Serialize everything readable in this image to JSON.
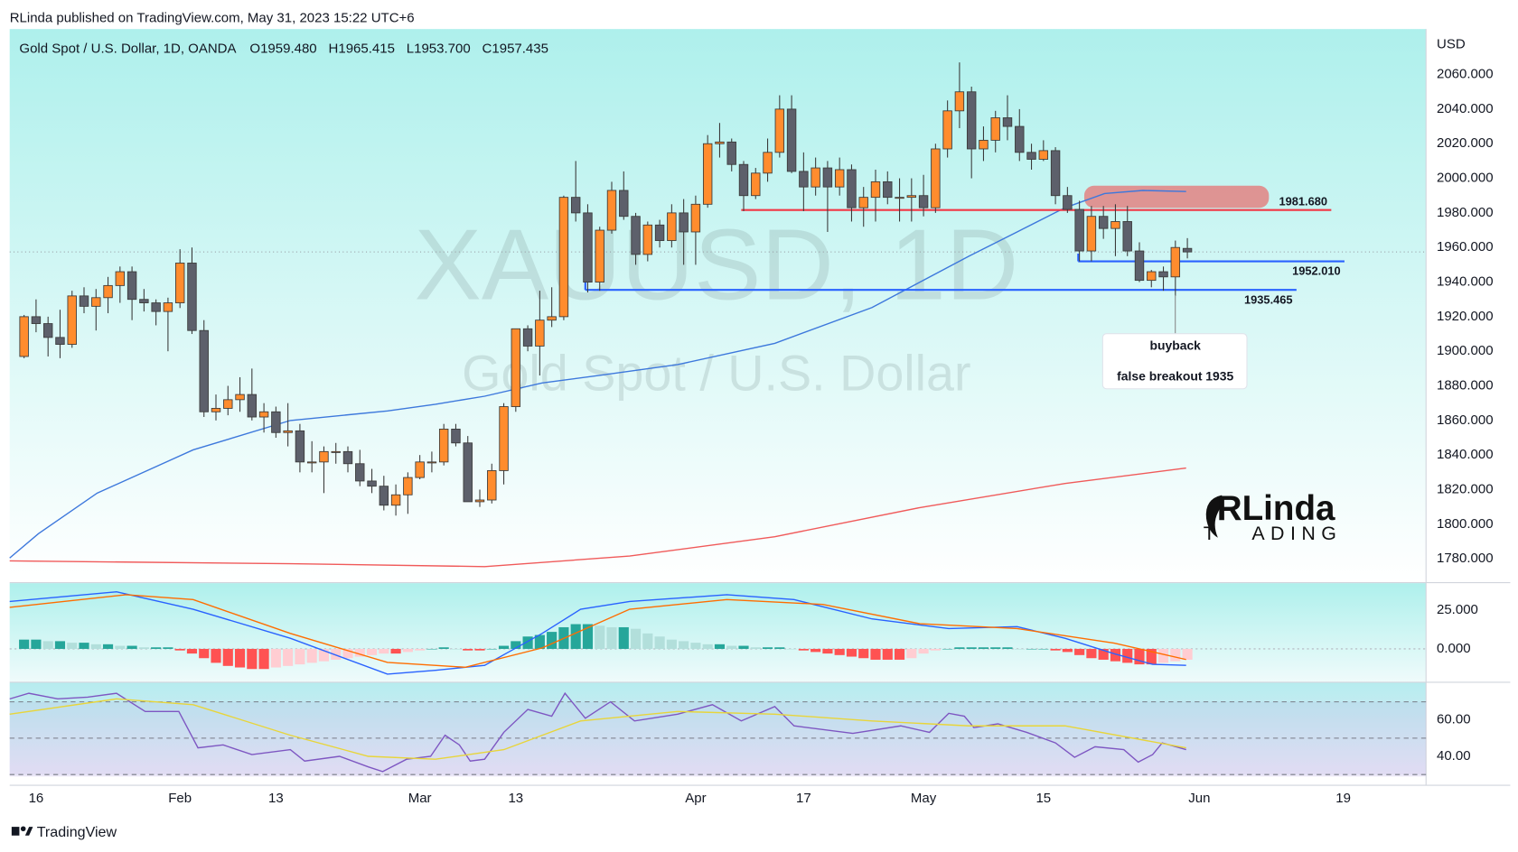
{
  "header": {
    "publisher": "RLinda published on TradingView.com, May 31, 2023 15:22 UTC+6"
  },
  "footer": {
    "brand": "TradingView"
  },
  "chart_data": [
    {
      "type": "candlestick",
      "title": "Gold Spot / U.S. Dollar, 1D, OANDA",
      "ohlc_legend": [
        "O1959.480",
        "H1965.415",
        "L1953.700",
        "C1957.435"
      ],
      "watermark": "XAUUSD, 1D",
      "watermark_sub": "Gold Spot / U.S. Dollar",
      "axis_unit": "USD",
      "logo": "RLinda",
      "logo_sub": [
        "T",
        "ADING"
      ],
      "up_color": "#ff8c2e",
      "down_color": "#5d606b",
      "xlim": [
        -1.2,
        116.9
      ],
      "xticks": [
        {
          "value": 1,
          "label": "16"
        },
        {
          "value": 13,
          "label": "Feb"
        },
        {
          "value": 21,
          "label": "13"
        },
        {
          "value": 33,
          "label": "Mar"
        },
        {
          "value": 41,
          "label": "13"
        },
        {
          "value": 56,
          "label": "Apr"
        },
        {
          "value": 65,
          "label": "17"
        },
        {
          "value": 75,
          "label": "May"
        },
        {
          "value": 85,
          "label": "15"
        },
        {
          "value": 98,
          "label": "Jun"
        },
        {
          "value": 110,
          "label": "19"
        }
      ],
      "ylim": [
        1766.5,
        2086.3
      ],
      "yticks": [
        {
          "value": 1780,
          "label": "1780.000"
        },
        {
          "value": 1800,
          "label": "1800.000"
        },
        {
          "value": 1820,
          "label": "1820.000"
        },
        {
          "value": 1840,
          "label": "1840.000"
        },
        {
          "value": 1860,
          "label": "1860.000"
        },
        {
          "value": 1880,
          "label": "1880.000"
        },
        {
          "value": 1900,
          "label": "1900.000"
        },
        {
          "value": 1920,
          "label": "1920.000"
        },
        {
          "value": 1940,
          "label": "1940.000"
        },
        {
          "value": 1960,
          "label": "1960.000"
        },
        {
          "value": 1980,
          "label": "1980.000"
        },
        {
          "value": 2000,
          "label": "2000.000"
        },
        {
          "value": 2020,
          "label": "2020.000"
        },
        {
          "value": 2040,
          "label": "2040.000"
        },
        {
          "value": 2060,
          "label": "2060.000"
        }
      ],
      "grid": false,
      "ohlc": [
        [
          1897,
          1921,
          1896,
          1920
        ],
        [
          1920,
          1930,
          1911,
          1916
        ],
        [
          1916,
          1920,
          1897,
          1908
        ],
        [
          1908,
          1924,
          1896,
          1904
        ],
        [
          1904,
          1935,
          1902,
          1932
        ],
        [
          1932,
          1937,
          1922,
          1926
        ],
        [
          1926,
          1936,
          1912,
          1931
        ],
        [
          1931,
          1943,
          1922,
          1938
        ],
        [
          1938,
          1949,
          1928,
          1946
        ],
        [
          1946,
          1949,
          1918,
          1930
        ],
        [
          1930,
          1936,
          1923,
          1928
        ],
        [
          1928,
          1930,
          1915,
          1923
        ],
        [
          1923,
          1931,
          1900,
          1928
        ],
        [
          1928,
          1959,
          1925,
          1951
        ],
        [
          1951,
          1960,
          1910,
          1912
        ],
        [
          1912,
          1918,
          1862,
          1865
        ],
        [
          1865,
          1875,
          1860,
          1867
        ],
        [
          1867,
          1880,
          1863,
          1872
        ],
        [
          1872,
          1885,
          1865,
          1875
        ],
        [
          1875,
          1890,
          1860,
          1862
        ],
        [
          1862,
          1870,
          1853,
          1865
        ],
        [
          1865,
          1868,
          1850,
          1853
        ],
        [
          1853,
          1870,
          1845,
          1854
        ],
        [
          1854,
          1858,
          1830,
          1836
        ],
        [
          1836,
          1848,
          1830,
          1836
        ],
        [
          1836,
          1845,
          1818,
          1842
        ],
        [
          1842,
          1847,
          1835,
          1842
        ],
        [
          1842,
          1845,
          1830,
          1835
        ],
        [
          1835,
          1843,
          1822,
          1825
        ],
        [
          1825,
          1832,
          1818,
          1822
        ],
        [
          1822,
          1828,
          1808,
          1811
        ],
        [
          1811,
          1823,
          1805,
          1817
        ],
        [
          1817,
          1830,
          1806,
          1827
        ],
        [
          1827,
          1840,
          1826,
          1836
        ],
        [
          1836,
          1842,
          1830,
          1836
        ],
        [
          1836,
          1858,
          1834,
          1855
        ],
        [
          1855,
          1858,
          1845,
          1847
        ],
        [
          1847,
          1851,
          1813,
          1813
        ],
        [
          1813,
          1820,
          1810,
          1814
        ],
        [
          1814,
          1835,
          1812,
          1831
        ],
        [
          1831,
          1870,
          1823,
          1868
        ],
        [
          1868,
          1913,
          1865,
          1913
        ],
        [
          1913,
          1915,
          1900,
          1903
        ],
        [
          1903,
          1935,
          1886,
          1918
        ],
        [
          1918,
          1937,
          1914,
          1920
        ],
        [
          1920,
          1990,
          1918,
          1989
        ],
        [
          1989,
          2010,
          1975,
          1980
        ],
        [
          1980,
          1985,
          1934,
          1940
        ],
        [
          1940,
          1972,
          1935,
          1970
        ],
        [
          1970,
          1998,
          1968,
          1993
        ],
        [
          1993,
          2004,
          1976,
          1978
        ],
        [
          1978,
          1980,
          1950,
          1956
        ],
        [
          1956,
          1975,
          1952,
          1973
        ],
        [
          1973,
          1976,
          1960,
          1964
        ],
        [
          1964,
          1985,
          1960,
          1980
        ],
        [
          1980,
          1988,
          1950,
          1969
        ],
        [
          1969,
          1990,
          1950,
          1985
        ],
        [
          1985,
          2025,
          1983,
          2020
        ],
        [
          2020,
          2032,
          2012,
          2021
        ],
        [
          2021,
          2023,
          2004,
          2008
        ],
        [
          2008,
          2010,
          1981,
          1990
        ],
        [
          1990,
          2006,
          1988,
          2003
        ],
        [
          2003,
          2023,
          1998,
          2015
        ],
        [
          2015,
          2048,
          2012,
          2040
        ],
        [
          2040,
          2048,
          2003,
          2004
        ],
        [
          2004,
          2015,
          1981,
          1995
        ],
        [
          1995,
          2012,
          1990,
          2006
        ],
        [
          2006,
          2010,
          1969,
          1995
        ],
        [
          1995,
          2012,
          1990,
          2005
        ],
        [
          2005,
          2008,
          1975,
          1983
        ],
        [
          1983,
          1995,
          1972,
          1989
        ],
        [
          1989,
          2005,
          1975,
          1998
        ],
        [
          1998,
          2004,
          1985,
          1989
        ],
        [
          1989,
          2000,
          1975,
          1989
        ],
        [
          1989,
          2000,
          1975,
          1990
        ],
        [
          1990,
          2002,
          1978,
          1983
        ],
        [
          1983,
          2020,
          1980,
          2017
        ],
        [
          2017,
          2045,
          2012,
          2039
        ],
        [
          2039,
          2067,
          2029,
          2050
        ],
        [
          2050,
          2053,
          2000,
          2017
        ],
        [
          2017,
          2030,
          2010,
          2022
        ],
        [
          2022,
          2039,
          2015,
          2035
        ],
        [
          2035,
          2048,
          2022,
          2030
        ],
        [
          2030,
          2040,
          2010,
          2015
        ],
        [
          2015,
          2020,
          2005,
          2011
        ],
        [
          2011,
          2022,
          2010,
          2016
        ],
        [
          2016,
          2018,
          1985,
          1990
        ],
        [
          1990,
          1995,
          1980,
          1982
        ],
        [
          1982,
          1987,
          1952,
          1958
        ],
        [
          1958,
          1984,
          1952,
          1978
        ],
        [
          1978,
          1984,
          1965,
          1971
        ],
        [
          1971,
          1985,
          1955,
          1975
        ],
        [
          1975,
          1984,
          1955,
          1958
        ],
        [
          1958,
          1963,
          1940,
          1941
        ],
        [
          1941,
          1947,
          1937,
          1946
        ],
        [
          1946,
          1949,
          1935,
          1943
        ],
        [
          1943,
          1964,
          1932,
          1960
        ],
        [
          1959.48,
          1965.415,
          1953.7,
          1957.435
        ]
      ],
      "series": [
        {
          "name": "MA 50",
          "color": "#3d78dc",
          "x": [
            -1.2,
            1.2,
            6.1,
            14.1,
            22.2,
            30.3,
            34.3,
            38.4,
            43.2,
            48.1,
            54.5,
            62.6,
            70.7,
            78.8,
            82.8,
            86.8,
            90.1,
            93.3,
            96.9
          ],
          "values": [
            1780.5,
            1794.5,
            1818,
            1843,
            1860,
            1865.5,
            1869.4,
            1874,
            1881.7,
            1886.2,
            1892.3,
            1904.6,
            1925.3,
            1955,
            1969,
            1983,
            1991.2,
            1993,
            1992.4
          ]
        },
        {
          "name": "MA 200",
          "color": "#f05a5a",
          "x": [
            -1.2,
            22.2,
            38.4,
            50.5,
            62.6,
            74.7,
            86.8,
            96.9
          ],
          "values": [
            1778.8,
            1777.2,
            1775.5,
            1781.6,
            1792.8,
            1809.6,
            1823.6,
            1832.5
          ]
        }
      ],
      "last_price": 1957.435,
      "levels": [
        {
          "value": 1981.68,
          "label": "1981.680",
          "color": "#f23645",
          "x": [
            59.8,
            109
          ]
        },
        {
          "value": 1952.01,
          "label": "1952.010",
          "color": "#2962ff",
          "x": [
            87.9,
            110.1
          ]
        },
        {
          "value": 1935.465,
          "label": "1935.465",
          "color": "#2962ff",
          "x": [
            46.8,
            106.1
          ]
        }
      ],
      "zone": {
        "x": [
          88.4,
          103.8
        ],
        "y": [
          1982.9,
          1995.7
        ],
        "color": "#e57373"
      },
      "note": [
        "buyback",
        "false breakout 1935"
      ]
    },
    {
      "type": "macd",
      "ylim": [
        -21.25,
        42.5
      ],
      "yticks": [
        {
          "value": 25,
          "label": "25.000"
        },
        {
          "value": 0,
          "label": "0.000"
        }
      ],
      "histogram": [
        6,
        6,
        5,
        5,
        4,
        4,
        3,
        3,
        2,
        2,
        1,
        1,
        1,
        -1,
        -3,
        -6,
        -9,
        -11,
        -12,
        -13,
        -13,
        -12,
        -11,
        -10,
        -9,
        -8,
        -7,
        -6,
        -5,
        -4,
        -3,
        -3,
        -2,
        -1,
        0,
        1,
        0,
        -1,
        -1,
        0,
        2,
        5,
        8,
        9,
        11,
        14,
        16,
        16,
        15,
        14,
        14,
        13,
        10,
        8,
        6,
        5,
        4,
        3,
        3,
        2,
        2,
        1,
        1,
        1,
        0,
        -1,
        -2,
        -3,
        -4,
        -5,
        -6,
        -7,
        -7,
        -7,
        -6,
        -3,
        -1,
        0,
        1,
        1,
        1,
        1,
        1,
        0,
        0,
        0,
        -1,
        -2,
        -4,
        -6,
        -7,
        -8,
        -9,
        -10,
        -10,
        -9,
        -8,
        -7
      ],
      "histogram_colors": [
        "#26a69a",
        "#b2dfdb",
        "#ff5252",
        "#ffcdd2"
      ],
      "series": [
        {
          "name": "MACD",
          "color": "#2962ff",
          "x": [
            -1.2,
            7.7,
            14.1,
            22.2,
            30.3,
            34.3,
            38.4,
            43.2,
            46.4,
            50.5,
            58.6,
            64.2,
            70.7,
            77.1,
            82.8,
            86.8,
            90.9,
            94.1,
            96.9
          ],
          "values": [
            30.6,
            36.9,
            25.6,
            6.9,
            -16.3,
            -13.8,
            -10.6,
            10,
            25.6,
            30.6,
            35,
            31.9,
            19.4,
            13.1,
            14.4,
            6.9,
            -3.1,
            -10,
            -10.6
          ]
        },
        {
          "name": "Signal",
          "color": "#ff6d00",
          "x": [
            -1.2,
            8.5,
            14.1,
            22.2,
            30.3,
            36.8,
            43.2,
            50.5,
            58.6,
            66.6,
            74.7,
            82.8,
            90.9,
            96.9
          ],
          "values": [
            26.9,
            35,
            31.9,
            10,
            -8.75,
            -11.9,
            0.6,
            25.6,
            31.9,
            28.75,
            16.25,
            13.1,
            3.75,
            -6.9
          ]
        }
      ]
    },
    {
      "type": "rsi",
      "ylim": [
        28.9,
        80.5
      ],
      "yticks": [
        {
          "value": 60,
          "label": "60.00"
        },
        {
          "value": 40,
          "label": "40.00"
        }
      ],
      "hlines": [
        70,
        50,
        30
      ],
      "series": [
        {
          "name": "RSI",
          "color": "#7e57c2",
          "x": [
            -1.2,
            0.4,
            2.8,
            5.3,
            7.7,
            10.1,
            12.9,
            14.5,
            16.6,
            19,
            22.2,
            23.4,
            26.3,
            28.7,
            29.9,
            31.9,
            33.9,
            35.1,
            36.3,
            37.2,
            38.4,
            40,
            42,
            44,
            45.1,
            46.8,
            48.9,
            50.9,
            54.5,
            57.4,
            59.8,
            62.6,
            64.2,
            69.1,
            73.1,
            75.5,
            77.1,
            78.4,
            79.2,
            81.2,
            83.6,
            86,
            87.6,
            89.3,
            91.7,
            92.9,
            94.1,
            94.9,
            96.9
          ],
          "values": [
            71.6,
            74.7,
            71.6,
            72.6,
            74.7,
            64.7,
            64.7,
            44.7,
            46.3,
            41,
            43.7,
            37.4,
            40,
            34.2,
            31.6,
            38.4,
            40,
            51.6,
            46.3,
            37.4,
            38.4,
            53.2,
            65.8,
            62.1,
            74.7,
            61,
            70,
            59.5,
            63.2,
            68.4,
            59.5,
            67.4,
            56.8,
            52.6,
            56.8,
            53.2,
            63.7,
            62.1,
            55.8,
            57.9,
            53.2,
            47.4,
            39.5,
            45.3,
            43.7,
            36.8,
            41,
            47.4,
            43.7
          ]
        },
        {
          "name": "RSI MA",
          "color": "#e8d53a",
          "x": [
            -1.2,
            7.7,
            14.1,
            22.2,
            28.7,
            34.3,
            40,
            46.4,
            54.5,
            62.6,
            70.7,
            78.8,
            86.8,
            96.9
          ],
          "values": [
            63.2,
            71.6,
            68.4,
            51.6,
            40,
            38.4,
            43.7,
            59.5,
            64.7,
            63.2,
            59.5,
            56.8,
            56.8,
            44.7
          ]
        }
      ]
    }
  ]
}
